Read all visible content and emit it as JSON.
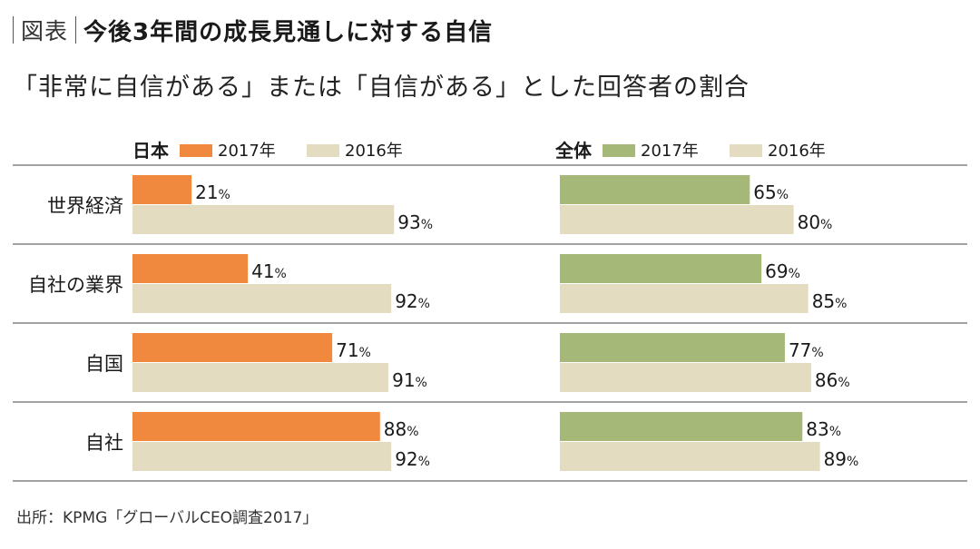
{
  "header": {
    "figure_label": "図表",
    "title": "今後3年間の成長見通しに対する自信"
  },
  "subtitle": "「非常に自信がある」または「自信がある」とした回答者の割合",
  "source": "出所：KPMG「グローバルCEO調査2017」",
  "colors": {
    "japan_2017": "#f0883e",
    "global_2017": "#a5b878",
    "year_2016": "#e3dcc0",
    "rule": "#444444"
  },
  "chart_data": [
    {
      "type": "bar",
      "orientation": "horizontal",
      "group_label": "日本",
      "categories": [
        "世界経済",
        "自社の業界",
        "自国",
        "自社"
      ],
      "series": [
        {
          "name": "2017年",
          "values": [
            21,
            41,
            71,
            88
          ]
        },
        {
          "name": "2016年",
          "values": [
            93,
            92,
            91,
            92
          ]
        }
      ],
      "unit": "%",
      "xlim": [
        0,
        100
      ],
      "legend": "top"
    },
    {
      "type": "bar",
      "orientation": "horizontal",
      "group_label": "全体",
      "categories": [
        "世界経済",
        "自社の業界",
        "自国",
        "自社"
      ],
      "series": [
        {
          "name": "2017年",
          "values": [
            65,
            69,
            77,
            83
          ]
        },
        {
          "name": "2016年",
          "values": [
            80,
            85,
            86,
            89
          ]
        }
      ],
      "unit": "%",
      "xlim": [
        0,
        100
      ],
      "legend": "top"
    }
  ]
}
